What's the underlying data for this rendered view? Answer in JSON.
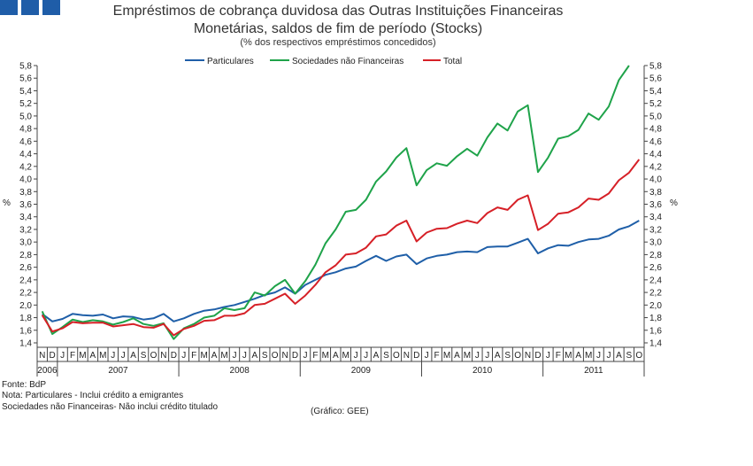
{
  "header": {
    "brand_squares": [
      "#1f5da8",
      "#1f5da8",
      "#1f5da8"
    ]
  },
  "chart_data": {
    "type": "line",
    "title": [
      "Empréstimos de cobrança duvidosa das Outras Instituições Financeiras",
      "Monetárias, saldos de fim de período (Stocks)"
    ],
    "subtitle": "(% dos respectivos empréstimos concedidos)",
    "ylabel_left": "%",
    "ylabel_right": "%",
    "ylim": [
      1.4,
      5.8
    ],
    "yticks": [
      "1,4",
      "1,6",
      "1,8",
      "2,0",
      "2,2",
      "2,4",
      "2,6",
      "2,8",
      "3,0",
      "3,2",
      "3,4",
      "3,6",
      "3,8",
      "4,0",
      "4,2",
      "4,4",
      "4,6",
      "4,8",
      "5,0",
      "5,2",
      "5,4",
      "5,6",
      "5,8"
    ],
    "month_labels": [
      "N",
      "D",
      "J",
      "F",
      "M",
      "A",
      "M",
      "J",
      "J",
      "A",
      "S",
      "O",
      "N",
      "D",
      "J",
      "F",
      "M",
      "A",
      "M",
      "J",
      "J",
      "A",
      "S",
      "O",
      "N",
      "D",
      "J",
      "F",
      "M",
      "A",
      "M",
      "J",
      "J",
      "A",
      "S",
      "O",
      "N",
      "D",
      "J",
      "F",
      "M",
      "A",
      "M",
      "J",
      "J",
      "A",
      "S",
      "O",
      "N",
      "D",
      "J",
      "F",
      "M",
      "A",
      "M",
      "J",
      "J",
      "A",
      "S",
      "O"
    ],
    "years": [
      {
        "label": "2006",
        "start": 0,
        "end": 2
      },
      {
        "label": "2007",
        "start": 2,
        "end": 14
      },
      {
        "label": "2008",
        "start": 14,
        "end": 26
      },
      {
        "label": "2009",
        "start": 26,
        "end": 38
      },
      {
        "label": "2010",
        "start": 38,
        "end": 50
      },
      {
        "label": "2011",
        "start": 50,
        "end": 60
      }
    ],
    "series": [
      {
        "name": "Particulares",
        "color": "#1f5fa8",
        "values": [
          1.86,
          1.74,
          1.78,
          1.86,
          1.84,
          1.83,
          1.85,
          1.79,
          1.82,
          1.81,
          1.77,
          1.79,
          1.86,
          1.74,
          1.79,
          1.86,
          1.91,
          1.93,
          1.97,
          2.0,
          2.05,
          2.1,
          2.16,
          2.2,
          2.28,
          2.18,
          2.32,
          2.4,
          2.48,
          2.52,
          2.58,
          2.61,
          2.7,
          2.78,
          2.7,
          2.77,
          2.8,
          2.65,
          2.74,
          2.78,
          2.8,
          2.84,
          2.85,
          2.84,
          2.92,
          2.93,
          2.93,
          2.99,
          3.05,
          2.82,
          2.9,
          2.95,
          2.94,
          3.0,
          3.04,
          3.05,
          3.1,
          3.2,
          3.25,
          3.34
        ]
      },
      {
        "name": "Sociedades não Financeiras",
        "color": "#1fa34a",
        "values": [
          1.9,
          1.54,
          1.65,
          1.77,
          1.73,
          1.76,
          1.74,
          1.69,
          1.73,
          1.79,
          1.7,
          1.67,
          1.71,
          1.46,
          1.63,
          1.7,
          1.8,
          1.83,
          1.95,
          1.92,
          1.95,
          2.2,
          2.15,
          2.3,
          2.4,
          2.18,
          2.38,
          2.64,
          2.98,
          3.2,
          3.48,
          3.51,
          3.67,
          3.96,
          4.12,
          4.34,
          4.49,
          3.9,
          4.14,
          4.25,
          4.21,
          4.36,
          4.48,
          4.37,
          4.66,
          4.88,
          4.77,
          5.07,
          5.17,
          4.11,
          4.34,
          4.64,
          4.68,
          4.78,
          5.04,
          4.94,
          5.15,
          5.57,
          5.8,
          null
        ]
      },
      {
        "name": "Total",
        "color": "#d62027",
        "values": [
          1.84,
          1.58,
          1.63,
          1.73,
          1.71,
          1.72,
          1.72,
          1.66,
          1.68,
          1.7,
          1.65,
          1.64,
          1.7,
          1.52,
          1.62,
          1.67,
          1.75,
          1.76,
          1.83,
          1.83,
          1.87,
          2.0,
          2.02,
          2.1,
          2.18,
          2.02,
          2.15,
          2.32,
          2.52,
          2.63,
          2.8,
          2.82,
          2.91,
          3.09,
          3.12,
          3.26,
          3.34,
          3.01,
          3.15,
          3.21,
          3.22,
          3.29,
          3.34,
          3.3,
          3.46,
          3.55,
          3.51,
          3.67,
          3.74,
          3.19,
          3.29,
          3.45,
          3.47,
          3.55,
          3.69,
          3.67,
          3.77,
          3.98,
          4.1,
          4.31
        ]
      }
    ]
  },
  "footer": {
    "source": "Fonte: BdP",
    "note1": "Nota: Particulares - Inclui crédito a emigrantes",
    "note2": "Sociedades não Financeiras- Não inclui crédito titulado",
    "credit": "(Gráfico: GEE)"
  }
}
